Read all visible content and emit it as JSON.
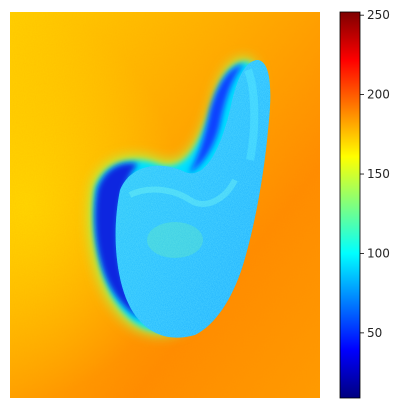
{
  "figure": {
    "kind": "pseudocolor-image",
    "colormap": "jet",
    "subject": "bean-shaped object on textured background"
  },
  "colorbar": {
    "min": 9,
    "max": 252,
    "ticks": [
      {
        "value": 50,
        "label": "50"
      },
      {
        "value": 100,
        "label": "100"
      },
      {
        "value": 150,
        "label": "150"
      },
      {
        "value": 200,
        "label": "200"
      },
      {
        "value": 250,
        "label": "250"
      }
    ],
    "colors": [
      "#00007f",
      "#0000ff",
      "#007fff",
      "#00ffff",
      "#7fff7f",
      "#ffff00",
      "#ff7f00",
      "#ff0000",
      "#7f0000"
    ]
  }
}
